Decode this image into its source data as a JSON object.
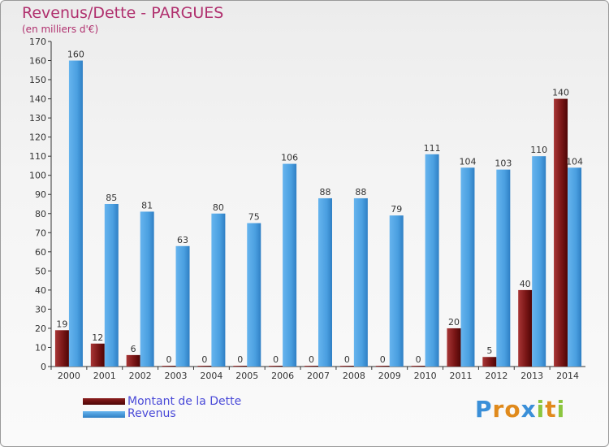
{
  "header": {
    "title": "Revenus/Dette - PARGUES",
    "subtitle": "(en milliers d'€)"
  },
  "legend": [
    {
      "label": "Montant de la Dette",
      "color": "#6b0a0a"
    },
    {
      "label": "Revenus",
      "color": "#4a9fe0"
    }
  ],
  "logo": {
    "text": "Proxiti"
  },
  "chart_data": {
    "type": "bar",
    "title": "Revenus/Dette - PARGUES",
    "subtitle": "(en milliers d'€)",
    "xlabel": "",
    "ylabel": "",
    "ylim": [
      0,
      170
    ],
    "yticks": [
      0,
      10,
      20,
      30,
      40,
      50,
      60,
      70,
      80,
      90,
      100,
      110,
      120,
      130,
      140,
      150,
      160,
      170
    ],
    "grid": false,
    "legend_position": "bottom-left",
    "categories": [
      "2000",
      "2001",
      "2002",
      "2003",
      "2004",
      "2005",
      "2006",
      "2007",
      "2008",
      "2009",
      "2010",
      "2011",
      "2012",
      "2013",
      "2014"
    ],
    "series": [
      {
        "name": "Montant de la Dette",
        "color": "#8b1e1e",
        "values": [
          19,
          12,
          6,
          0,
          0,
          0,
          0,
          0,
          0,
          0,
          0,
          20,
          5,
          40,
          140
        ]
      },
      {
        "name": "Revenus",
        "color": "#4a9fe0",
        "values": [
          160,
          85,
          81,
          63,
          80,
          75,
          106,
          88,
          88,
          79,
          111,
          104,
          103,
          110,
          104
        ]
      }
    ]
  }
}
